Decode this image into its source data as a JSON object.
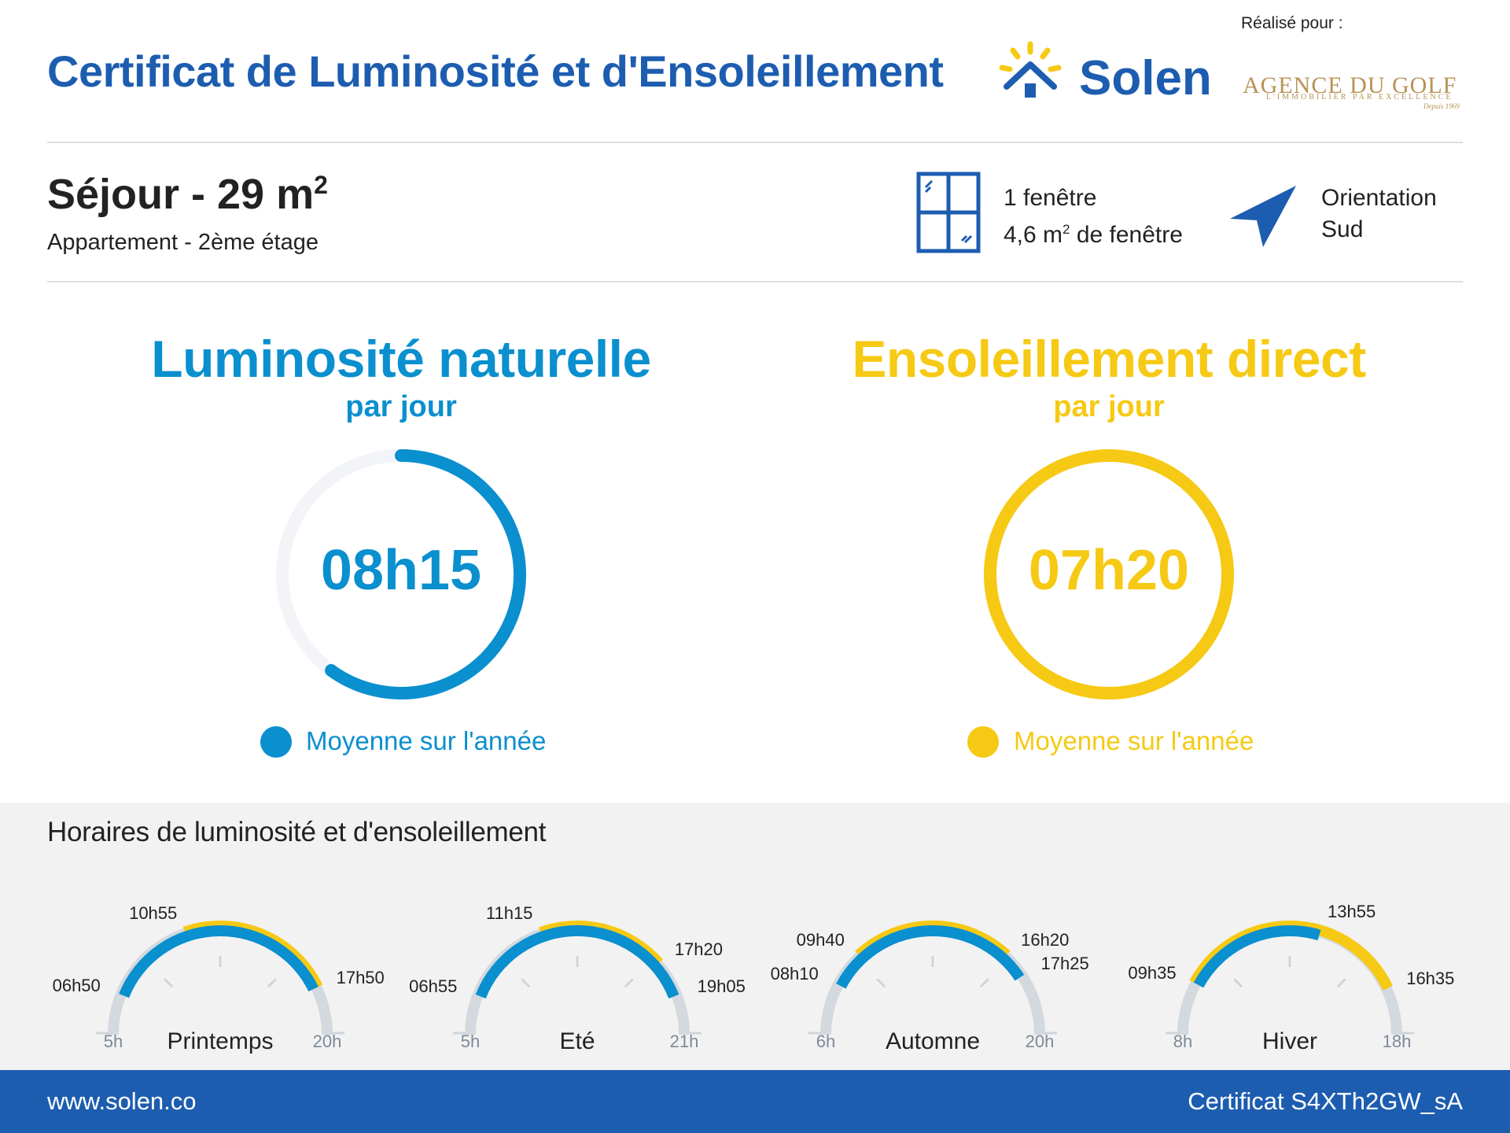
{
  "header": {
    "title": "Certificat de Luminosité et d'Ensoleillement",
    "brand": "Solen",
    "made_for_label": "Réalisé pour :",
    "partner_name": "AGENCE DU GOLF",
    "partner_tagline": "L'IMMOBILIER PAR EXCELLENCE",
    "partner_since": "Depuis 1969"
  },
  "room": {
    "name": "Séjour - 29 m",
    "area_exponent": "2",
    "description": "Appartement - 2ème étage",
    "windows_count": "1 fenêtre",
    "window_area": "4,6 m",
    "window_area_exponent": "2",
    "window_area_suffix": " de fenêtre",
    "orientation_label": "Orientation",
    "orientation_value": "Sud"
  },
  "luminosity": {
    "title": "Luminosité naturelle",
    "subtitle": "par jour",
    "value": "08h15",
    "fraction": 0.6,
    "legend": "Moyenne sur l'année"
  },
  "sunlight": {
    "title": "Ensoleillement direct",
    "subtitle": "par jour",
    "value": "07h20",
    "fraction": 1.0,
    "legend": "Moyenne sur l'année"
  },
  "schedule": {
    "title": "Horaires de luminosité et d'ensoleillement",
    "seasons": [
      {
        "name": "Printemps",
        "axis_start": "5h",
        "axis_end": "20h",
        "start_hour": 5,
        "end_hour": 20,
        "light_start": "06h50",
        "light_end": "17h50",
        "light_start_h": 6.833,
        "light_end_h": 17.833,
        "sun_start": "10h55",
        "sun_end": "17h50",
        "sun_start_h": 10.917,
        "sun_end_h": 17.833
      },
      {
        "name": "Eté",
        "axis_start": "5h",
        "axis_end": "21h",
        "start_hour": 5,
        "end_hour": 21,
        "light_start": "06h55",
        "light_end": "19h05",
        "light_start_h": 6.917,
        "light_end_h": 19.083,
        "sun_start": "11h15",
        "sun_end": "17h20",
        "sun_start_h": 11.25,
        "sun_end_h": 17.333
      },
      {
        "name": "Automne",
        "axis_start": "6h",
        "axis_end": "20h",
        "start_hour": 6,
        "end_hour": 20,
        "light_start": "08h10",
        "light_end": "17h25",
        "light_start_h": 8.167,
        "light_end_h": 17.417,
        "sun_start": "09h40",
        "sun_end": "16h20",
        "sun_start_h": 9.667,
        "sun_end_h": 16.333
      },
      {
        "name": "Hiver",
        "axis_start": "8h",
        "axis_end": "18h",
        "start_hour": 8,
        "end_hour": 18,
        "light_start": "09h35",
        "light_end": "13h55",
        "light_start_h": 9.583,
        "light_end_h": 13.917,
        "sun_start": "09h35",
        "sun_end": "16h35",
        "sun_start_h": 9.583,
        "sun_end_h": 16.583
      }
    ]
  },
  "footer": {
    "website": "www.solen.co",
    "certificate": "Certificat S4XTh2GW_sA"
  },
  "colors": {
    "brand_blue": "#1d5db0",
    "light_blue": "#0a8fcf",
    "sun_yellow": "#f6c914",
    "track_grey": "#d3d9de"
  }
}
